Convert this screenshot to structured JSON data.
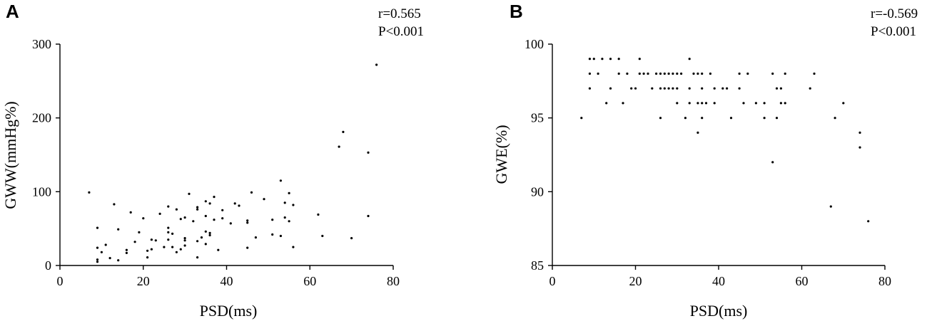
{
  "chart_data": [
    {
      "type": "scatter",
      "panel": "A",
      "xlabel": "PSD(ms)",
      "ylabel": "GWW(mmHg%)",
      "xlim": [
        0,
        80
      ],
      "ylim": [
        0,
        300
      ],
      "xticks": [
        0,
        20,
        40,
        60,
        80
      ],
      "yticks": [
        0,
        100,
        200,
        300
      ],
      "annotations": [
        "r=0.565",
        "P<0.001"
      ],
      "grid": false,
      "points": [
        [
          7,
          99
        ],
        [
          9,
          51
        ],
        [
          9,
          24
        ],
        [
          9,
          8
        ],
        [
          9,
          5
        ],
        [
          10,
          18
        ],
        [
          11,
          28
        ],
        [
          12,
          10
        ],
        [
          13,
          83
        ],
        [
          14,
          49
        ],
        [
          14,
          7
        ],
        [
          16,
          17
        ],
        [
          16,
          21
        ],
        [
          17,
          72
        ],
        [
          18,
          32
        ],
        [
          19,
          45
        ],
        [
          20,
          64
        ],
        [
          21,
          11
        ],
        [
          21,
          20
        ],
        [
          22,
          35
        ],
        [
          22,
          22
        ],
        [
          23,
          34
        ],
        [
          24,
          70
        ],
        [
          25,
          25
        ],
        [
          26,
          80
        ],
        [
          26,
          51
        ],
        [
          26,
          45
        ],
        [
          26,
          35
        ],
        [
          27,
          43
        ],
        [
          27,
          25
        ],
        [
          28,
          76
        ],
        [
          28,
          18
        ],
        [
          29,
          63
        ],
        [
          29,
          22
        ],
        [
          30,
          65
        ],
        [
          30,
          37
        ],
        [
          30,
          34
        ],
        [
          30,
          27
        ],
        [
          31,
          97
        ],
        [
          32,
          60
        ],
        [
          33,
          79
        ],
        [
          33,
          76
        ],
        [
          33,
          33
        ],
        [
          33,
          11
        ],
        [
          34,
          38
        ],
        [
          35,
          87
        ],
        [
          35,
          67
        ],
        [
          35,
          46
        ],
        [
          35,
          29
        ],
        [
          36,
          84
        ],
        [
          36,
          44
        ],
        [
          36,
          41
        ],
        [
          37,
          93
        ],
        [
          37,
          62
        ],
        [
          38,
          21
        ],
        [
          39,
          75
        ],
        [
          39,
          64
        ],
        [
          41,
          57
        ],
        [
          42,
          84
        ],
        [
          43,
          81
        ],
        [
          45,
          61
        ],
        [
          45,
          58
        ],
        [
          45,
          24
        ],
        [
          46,
          99
        ],
        [
          47,
          38
        ],
        [
          49,
          90
        ],
        [
          51,
          62
        ],
        [
          51,
          42
        ],
        [
          53,
          115
        ],
        [
          53,
          40
        ],
        [
          54,
          85
        ],
        [
          54,
          65
        ],
        [
          55,
          98
        ],
        [
          55,
          60
        ],
        [
          56,
          82
        ],
        [
          56,
          25
        ],
        [
          62,
          69
        ],
        [
          63,
          40
        ],
        [
          67,
          161
        ],
        [
          68,
          181
        ],
        [
          70,
          37
        ],
        [
          74,
          153
        ],
        [
          74,
          67
        ],
        [
          76,
          272
        ]
      ]
    },
    {
      "type": "scatter",
      "panel": "B",
      "xlabel": "PSD(ms)",
      "ylabel": "GWE(%)",
      "xlim": [
        0,
        80
      ],
      "ylim": [
        85,
        100
      ],
      "xticks": [
        0,
        20,
        40,
        60,
        80
      ],
      "yticks": [
        85,
        90,
        95,
        100
      ],
      "annotations": [
        "r=-0.569",
        "P<0.001"
      ],
      "grid": false,
      "points": [
        [
          7,
          95
        ],
        [
          9,
          99
        ],
        [
          9,
          98
        ],
        [
          9,
          97
        ],
        [
          10,
          99
        ],
        [
          11,
          98
        ],
        [
          12,
          99
        ],
        [
          13,
          96
        ],
        [
          14,
          99
        ],
        [
          14,
          97
        ],
        [
          16,
          99
        ],
        [
          16,
          98
        ],
        [
          17,
          96
        ],
        [
          18,
          98
        ],
        [
          19,
          97
        ],
        [
          20,
          97
        ],
        [
          21,
          99
        ],
        [
          21,
          98
        ],
        [
          22,
          98
        ],
        [
          23,
          98
        ],
        [
          24,
          97
        ],
        [
          25,
          98
        ],
        [
          26,
          98
        ],
        [
          26,
          97
        ],
        [
          26,
          95
        ],
        [
          27,
          98
        ],
        [
          27,
          97
        ],
        [
          28,
          98
        ],
        [
          28,
          97
        ],
        [
          29,
          98
        ],
        [
          29,
          97
        ],
        [
          30,
          98
        ],
        [
          30,
          97
        ],
        [
          30,
          96
        ],
        [
          31,
          98
        ],
        [
          32,
          95
        ],
        [
          33,
          99
        ],
        [
          33,
          97
        ],
        [
          33,
          96
        ],
        [
          34,
          98
        ],
        [
          35,
          98
        ],
        [
          35,
          96
        ],
        [
          35,
          94
        ],
        [
          36,
          98
        ],
        [
          36,
          97
        ],
        [
          36,
          96
        ],
        [
          36,
          95
        ],
        [
          37,
          96
        ],
        [
          38,
          98
        ],
        [
          39,
          97
        ],
        [
          39,
          96
        ],
        [
          41,
          97
        ],
        [
          42,
          97
        ],
        [
          43,
          95
        ],
        [
          45,
          98
        ],
        [
          45,
          97
        ],
        [
          46,
          96
        ],
        [
          47,
          98
        ],
        [
          49,
          96
        ],
        [
          51,
          96
        ],
        [
          51,
          95
        ],
        [
          53,
          98
        ],
        [
          53,
          92
        ],
        [
          54,
          97
        ],
        [
          54,
          95
        ],
        [
          55,
          97
        ],
        [
          55,
          96
        ],
        [
          56,
          98
        ],
        [
          56,
          96
        ],
        [
          62,
          97
        ],
        [
          63,
          98
        ],
        [
          67,
          89
        ],
        [
          68,
          95
        ],
        [
          70,
          96
        ],
        [
          74,
          94
        ],
        [
          74,
          93
        ],
        [
          76,
          88
        ]
      ]
    }
  ]
}
